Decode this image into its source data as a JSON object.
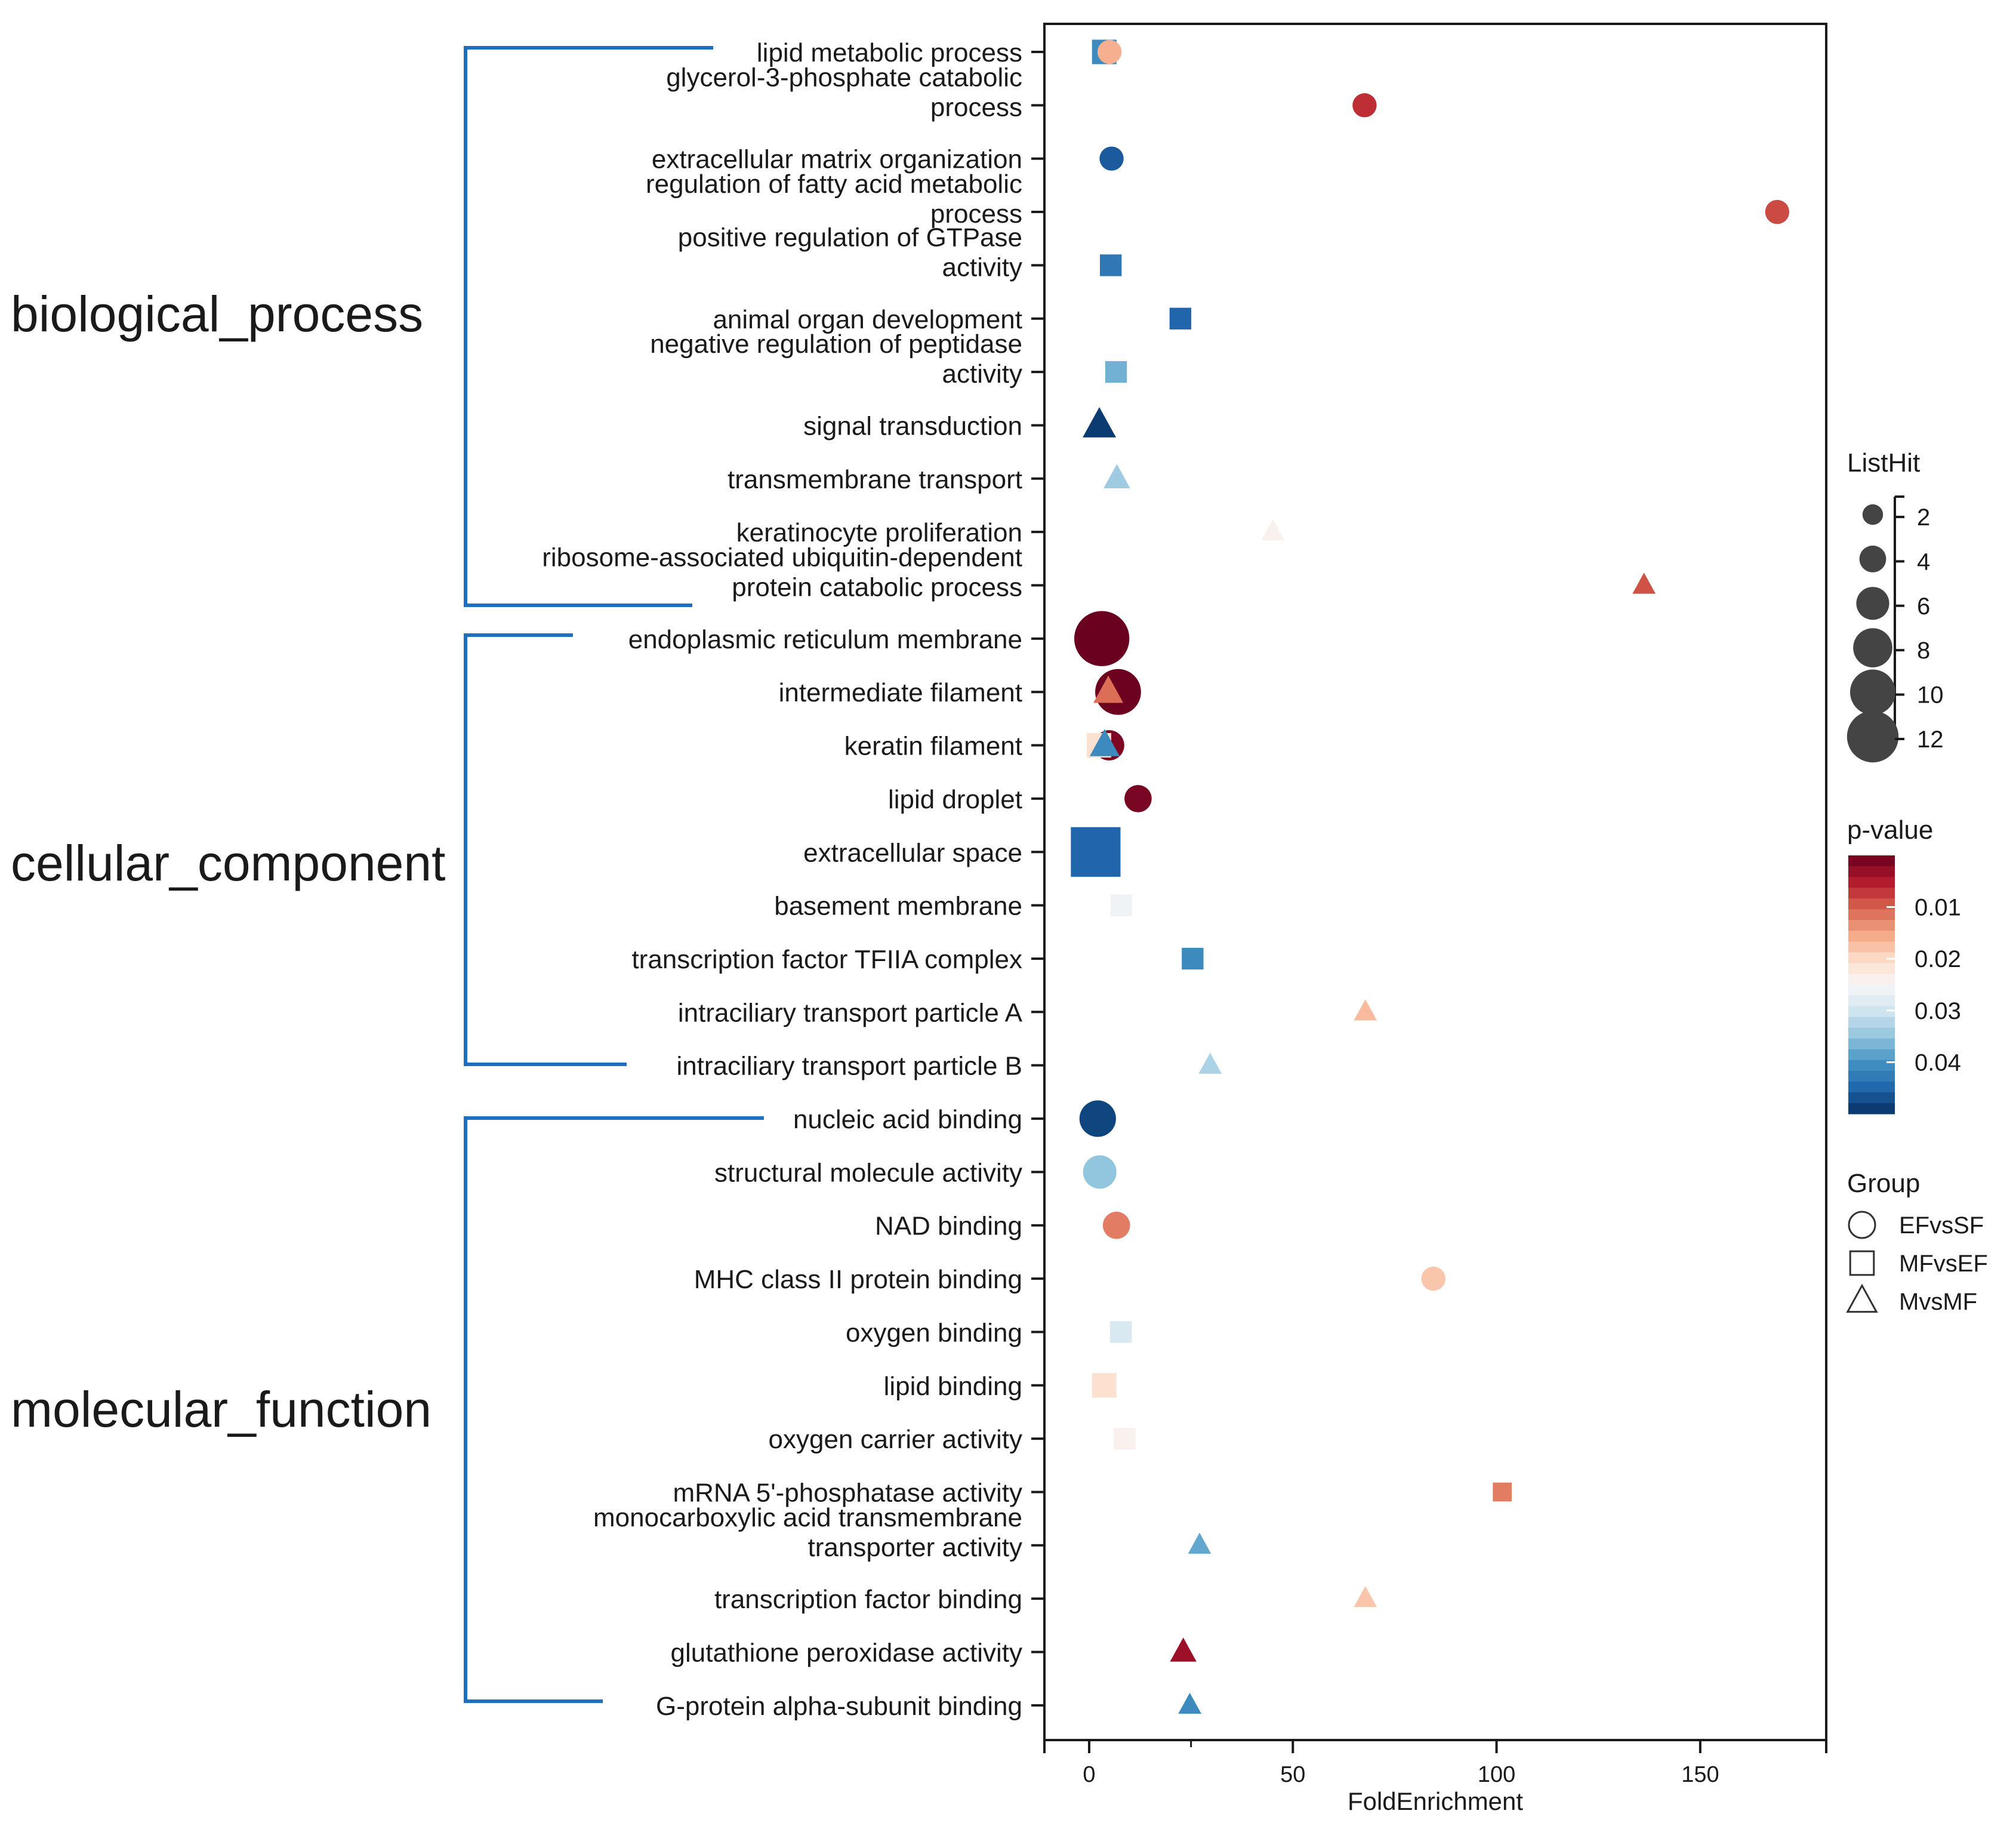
{
  "chart_data": {
    "type": "scatter",
    "xlabel": "FoldEnrichment",
    "xlim": [
      -10,
      180
    ],
    "xticks": [
      0,
      50,
      100,
      150
    ],
    "categories": [
      {
        "name": "biological_process",
        "first": 0,
        "last": 10
      },
      {
        "name": "cellular_component",
        "first": 11,
        "last": 19
      },
      {
        "name": "molecular_function",
        "first": 20,
        "last": 31
      }
    ],
    "terms": [
      [
        "lipid metabolic process"
      ],
      [
        "glycerol-3-phosphate catabolic",
        "process"
      ],
      [
        "extracellular matrix organization"
      ],
      [
        "regulation of fatty acid metabolic",
        "process"
      ],
      [
        "positive regulation of GTPase",
        "activity"
      ],
      [
        "animal organ development"
      ],
      [
        "negative regulation of peptidase",
        "activity"
      ],
      [
        "signal transduction"
      ],
      [
        "transmembrane transport"
      ],
      [
        "keratinocyte proliferation"
      ],
      [
        "ribosome-associated ubiquitin-dependent",
        "protein catabolic process"
      ],
      [
        "endoplasmic reticulum membrane"
      ],
      [
        "intermediate filament"
      ],
      [
        "keratin filament"
      ],
      [
        "lipid droplet"
      ],
      [
        "extracellular space"
      ],
      [
        "basement membrane"
      ],
      [
        "transcription factor TFIIA complex"
      ],
      [
        "intraciliary transport particle A"
      ],
      [
        "intraciliary transport particle B"
      ],
      [
        "nucleic acid binding"
      ],
      [
        "structural molecule activity"
      ],
      [
        "NAD binding"
      ],
      [
        "MHC class II protein binding"
      ],
      [
        "oxygen binding"
      ],
      [
        "lipid binding"
      ],
      [
        "oxygen carrier activity"
      ],
      [
        "mRNA 5'-phosphatase activity"
      ],
      [
        "monocarboxylic acid transmembrane",
        "transporter activity"
      ],
      [
        "transcription factor binding"
      ],
      [
        "glutathione peroxidase activity"
      ],
      [
        "G-protein alpha-subunit binding"
      ]
    ],
    "points": [
      {
        "term": 0,
        "group": "EFvsSF",
        "x": 5,
        "hits": 2,
        "p": 0.016
      },
      {
        "term": 0,
        "group": "MFvsEF",
        "x": 3.7,
        "hits": 3,
        "p": 0.041
      },
      {
        "term": 1,
        "group": "EFvsSF",
        "x": 67.6,
        "hits": 2,
        "p": 0.0065
      },
      {
        "term": 2,
        "group": "EFvsSF",
        "x": 5.5,
        "hits": 2,
        "p": 0.046
      },
      {
        "term": 3,
        "group": "EFvsSF",
        "x": 168.9,
        "hits": 2,
        "p": 0.0085
      },
      {
        "term": 4,
        "group": "MFvsEF",
        "x": 5.3,
        "hits": 2,
        "p": 0.043
      },
      {
        "term": 5,
        "group": "MFvsEF",
        "x": 22.4,
        "hits": 2,
        "p": 0.045
      },
      {
        "term": 6,
        "group": "MFvsEF",
        "x": 6.6,
        "hits": 2,
        "p": 0.037
      },
      {
        "term": 7,
        "group": "MvsMF",
        "x": 2.5,
        "hits": 4,
        "p": 0.049
      },
      {
        "term": 8,
        "group": "MvsMF",
        "x": 6.8,
        "hits": 2,
        "p": 0.034
      },
      {
        "term": 9,
        "group": "MvsMF",
        "x": 45.1,
        "hits": 1,
        "p": 0.024
      },
      {
        "term": 10,
        "group": "MvsMF",
        "x": 136.2,
        "hits": 1,
        "p": 0.009
      },
      {
        "term": 11,
        "group": "EFvsSF",
        "x": 3.1,
        "hits": 12,
        "p": 0.0002
      },
      {
        "term": 12,
        "group": "EFvsSF",
        "x": 7.1,
        "hits": 9,
        "p": 0.0004
      },
      {
        "term": 12,
        "group": "MvsMF",
        "x": 4.7,
        "hits": 3,
        "p": 0.011
      },
      {
        "term": 13,
        "group": "EFvsSF",
        "x": 4.9,
        "hits": 4,
        "p": 0.0015
      },
      {
        "term": 13,
        "group": "MFvsEF",
        "x": 2.4,
        "hits": 3,
        "p": 0.021
      },
      {
        "term": 13,
        "group": "MvsMF",
        "x": 3.8,
        "hits": 3,
        "p": 0.041
      },
      {
        "term": 14,
        "group": "EFvsSF",
        "x": 12,
        "hits": 3,
        "p": 0.0012
      },
      {
        "term": 15,
        "group": "MFvsEF",
        "x": 1.6,
        "hits": 12,
        "p": 0.045
      },
      {
        "term": 16,
        "group": "MFvsEF",
        "x": 7.9,
        "hits": 2,
        "p": 0.026
      },
      {
        "term": 17,
        "group": "MFvsEF",
        "x": 25.4,
        "hits": 2,
        "p": 0.041
      },
      {
        "term": 18,
        "group": "MvsMF",
        "x": 67.8,
        "hits": 1,
        "p": 0.017
      },
      {
        "term": 19,
        "group": "MvsMF",
        "x": 29.7,
        "hits": 1,
        "p": 0.033
      },
      {
        "term": 20,
        "group": "EFvsSF",
        "x": 2.1,
        "hits": 6,
        "p": 0.048
      },
      {
        "term": 21,
        "group": "EFvsSF",
        "x": 2.6,
        "hits": 5,
        "p": 0.035
      },
      {
        "term": 22,
        "group": "EFvsSF",
        "x": 6.7,
        "hits": 3,
        "p": 0.012
      },
      {
        "term": 23,
        "group": "EFvsSF",
        "x": 84.5,
        "hits": 2,
        "p": 0.018
      },
      {
        "term": 24,
        "group": "MFvsEF",
        "x": 7.8,
        "hits": 2,
        "p": 0.029
      },
      {
        "term": 25,
        "group": "MFvsEF",
        "x": 3.7,
        "hits": 3,
        "p": 0.021
      },
      {
        "term": 26,
        "group": "MFvsEF",
        "x": 8.7,
        "hits": 2,
        "p": 0.024
      },
      {
        "term": 27,
        "group": "MFvsEF",
        "x": 101.4,
        "hits": 1,
        "p": 0.012
      },
      {
        "term": 28,
        "group": "MvsMF",
        "x": 27.1,
        "hits": 1,
        "p": 0.038
      },
      {
        "term": 29,
        "group": "MvsMF",
        "x": 67.8,
        "hits": 1,
        "p": 0.018
      },
      {
        "term": 30,
        "group": "MvsMF",
        "x": 23.1,
        "hits": 2,
        "p": 0.0035
      },
      {
        "term": 31,
        "group": "MvsMF",
        "x": 24.7,
        "hits": 1,
        "p": 0.041
      }
    ],
    "size_legend": {
      "title": "ListHit",
      "values": [
        2,
        4,
        6,
        8,
        10,
        12
      ]
    },
    "color_legend": {
      "title": "p-value",
      "ticks": [
        0.01,
        0.02,
        0.03,
        0.04
      ],
      "range": [
        0,
        0.05
      ],
      "colors": [
        "#67001f",
        "#b2182b",
        "#d6604d",
        "#f4a582",
        "#fddbc7",
        "#f7f7f7",
        "#d1e5f0",
        "#92c5de",
        "#4393c3",
        "#2166ac",
        "#053061"
      ]
    },
    "shape_legend": {
      "title": "Group",
      "entries": [
        {
          "name": "EFvsSF",
          "shape": "circle"
        },
        {
          "name": "MFvsEF",
          "shape": "square"
        },
        {
          "name": "MvsMF",
          "shape": "triangle"
        }
      ]
    }
  },
  "colors": {
    "bracket": "#1f6fc0",
    "marker_legend": "#444444",
    "axis": "#1a1a1a"
  }
}
